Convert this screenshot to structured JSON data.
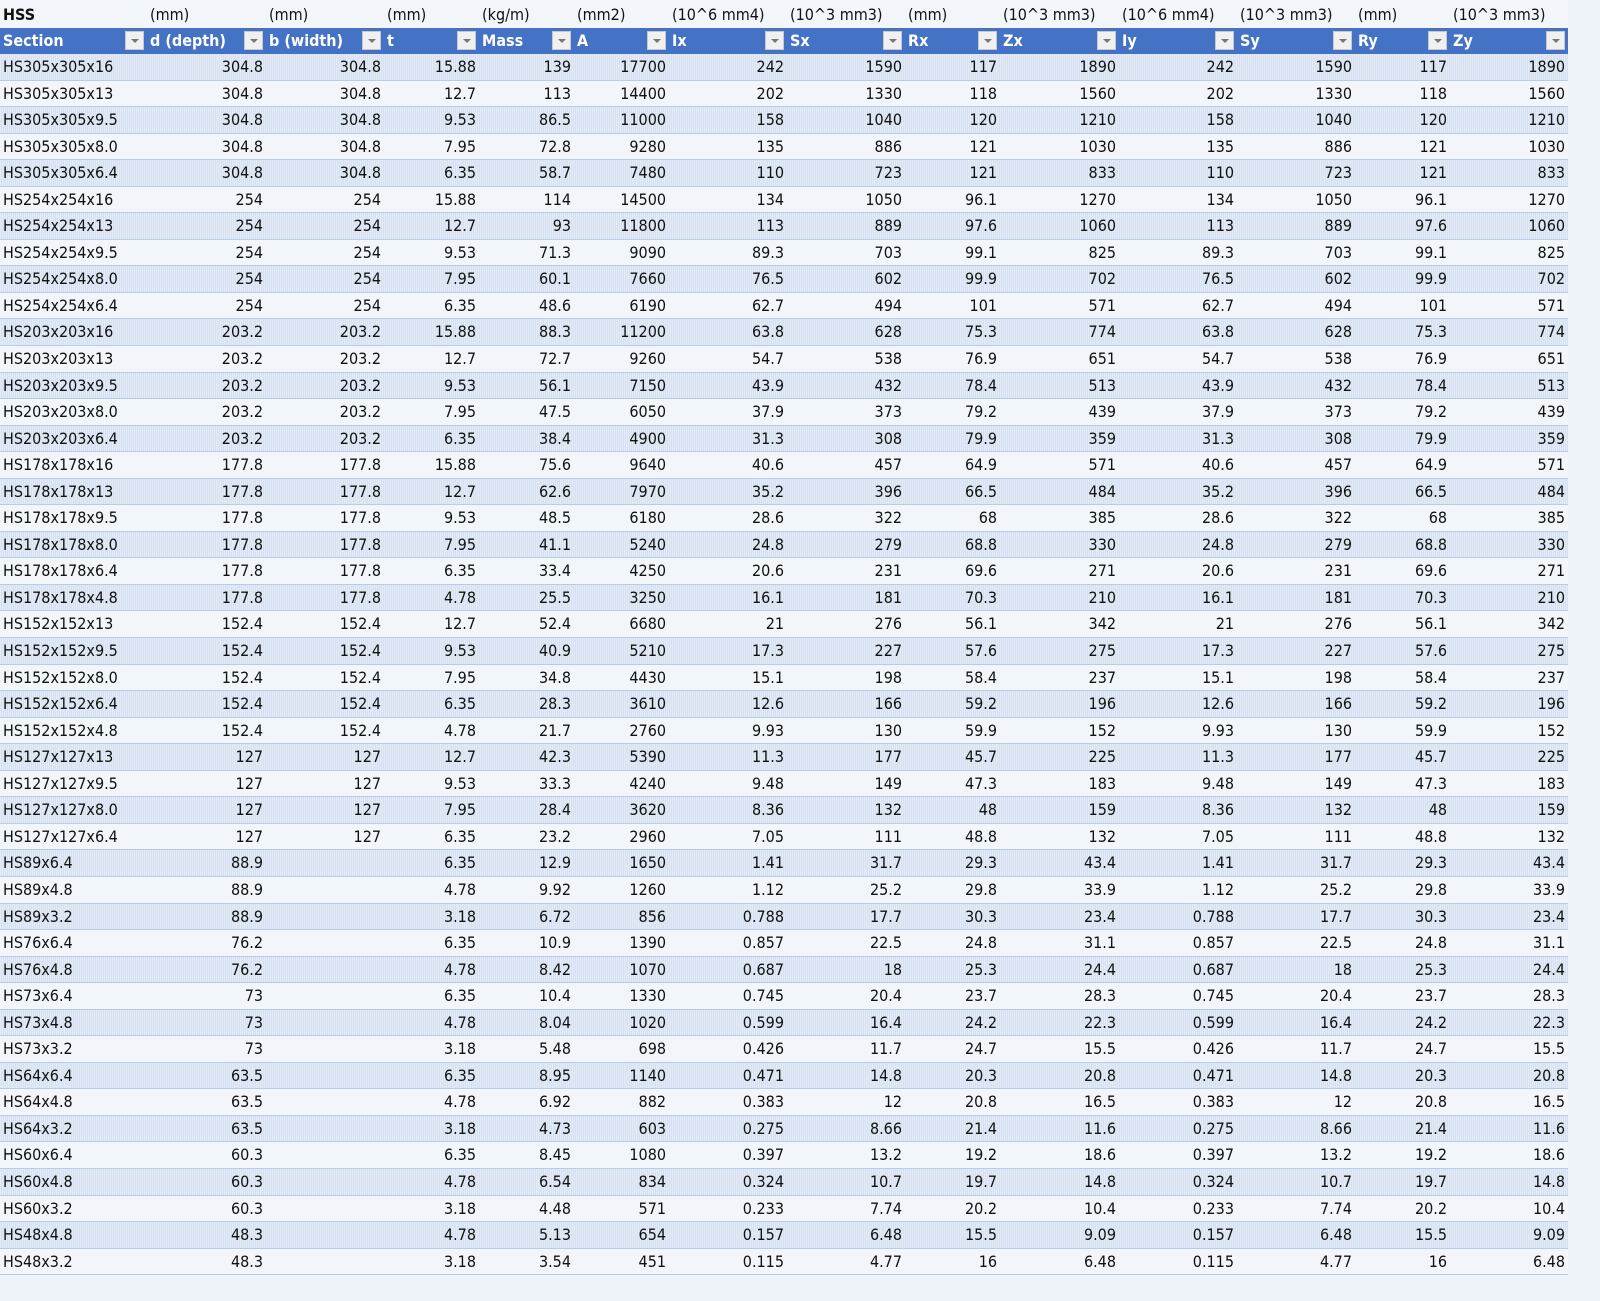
{
  "title": "HSS",
  "units": [
    "(mm)",
    "(mm)",
    "(mm)",
    "(kg/m)",
    "(mm2)",
    "(10^6 mm4)",
    "(10^3 mm3)",
    "(mm)",
    "(10^3 mm3)",
    "(10^6 mm4)",
    "(10^3 mm3)",
    "(mm)",
    "(10^3 mm3)"
  ],
  "columns": [
    "Section",
    "d (depth)",
    "b (width)",
    "t",
    "Mass",
    "A",
    "Ix",
    "Sx",
    "Rx",
    "Zx",
    "Iy",
    "Sy",
    "Ry",
    "Zy"
  ],
  "colors": {
    "header_bg": "#4472c4",
    "band": "#d5e1f1",
    "row": "#f2f5fa",
    "grid_line": "#b8cce4"
  },
  "rows": [
    [
      "HS305x305x16",
      "304.8",
      "304.8",
      "15.88",
      "139",
      "17700",
      "242",
      "1590",
      "117",
      "1890",
      "242",
      "1590",
      "117",
      "1890"
    ],
    [
      "HS305x305x13",
      "304.8",
      "304.8",
      "12.7",
      "113",
      "14400",
      "202",
      "1330",
      "118",
      "1560",
      "202",
      "1330",
      "118",
      "1560"
    ],
    [
      "HS305x305x9.5",
      "304.8",
      "304.8",
      "9.53",
      "86.5",
      "11000",
      "158",
      "1040",
      "120",
      "1210",
      "158",
      "1040",
      "120",
      "1210"
    ],
    [
      "HS305x305x8.0",
      "304.8",
      "304.8",
      "7.95",
      "72.8",
      "9280",
      "135",
      "886",
      "121",
      "1030",
      "135",
      "886",
      "121",
      "1030"
    ],
    [
      "HS305x305x6.4",
      "304.8",
      "304.8",
      "6.35",
      "58.7",
      "7480",
      "110",
      "723",
      "121",
      "833",
      "110",
      "723",
      "121",
      "833"
    ],
    [
      "HS254x254x16",
      "254",
      "254",
      "15.88",
      "114",
      "14500",
      "134",
      "1050",
      "96.1",
      "1270",
      "134",
      "1050",
      "96.1",
      "1270"
    ],
    [
      "HS254x254x13",
      "254",
      "254",
      "12.7",
      "93",
      "11800",
      "113",
      "889",
      "97.6",
      "1060",
      "113",
      "889",
      "97.6",
      "1060"
    ],
    [
      "HS254x254x9.5",
      "254",
      "254",
      "9.53",
      "71.3",
      "9090",
      "89.3",
      "703",
      "99.1",
      "825",
      "89.3",
      "703",
      "99.1",
      "825"
    ],
    [
      "HS254x254x8.0",
      "254",
      "254",
      "7.95",
      "60.1",
      "7660",
      "76.5",
      "602",
      "99.9",
      "702",
      "76.5",
      "602",
      "99.9",
      "702"
    ],
    [
      "HS254x254x6.4",
      "254",
      "254",
      "6.35",
      "48.6",
      "6190",
      "62.7",
      "494",
      "101",
      "571",
      "62.7",
      "494",
      "101",
      "571"
    ],
    [
      "HS203x203x16",
      "203.2",
      "203.2",
      "15.88",
      "88.3",
      "11200",
      "63.8",
      "628",
      "75.3",
      "774",
      "63.8",
      "628",
      "75.3",
      "774"
    ],
    [
      "HS203x203x13",
      "203.2",
      "203.2",
      "12.7",
      "72.7",
      "9260",
      "54.7",
      "538",
      "76.9",
      "651",
      "54.7",
      "538",
      "76.9",
      "651"
    ],
    [
      "HS203x203x9.5",
      "203.2",
      "203.2",
      "9.53",
      "56.1",
      "7150",
      "43.9",
      "432",
      "78.4",
      "513",
      "43.9",
      "432",
      "78.4",
      "513"
    ],
    [
      "HS203x203x8.0",
      "203.2",
      "203.2",
      "7.95",
      "47.5",
      "6050",
      "37.9",
      "373",
      "79.2",
      "439",
      "37.9",
      "373",
      "79.2",
      "439"
    ],
    [
      "HS203x203x6.4",
      "203.2",
      "203.2",
      "6.35",
      "38.4",
      "4900",
      "31.3",
      "308",
      "79.9",
      "359",
      "31.3",
      "308",
      "79.9",
      "359"
    ],
    [
      "HS178x178x16",
      "177.8",
      "177.8",
      "15.88",
      "75.6",
      "9640",
      "40.6",
      "457",
      "64.9",
      "571",
      "40.6",
      "457",
      "64.9",
      "571"
    ],
    [
      "HS178x178x13",
      "177.8",
      "177.8",
      "12.7",
      "62.6",
      "7970",
      "35.2",
      "396",
      "66.5",
      "484",
      "35.2",
      "396",
      "66.5",
      "484"
    ],
    [
      "HS178x178x9.5",
      "177.8",
      "177.8",
      "9.53",
      "48.5",
      "6180",
      "28.6",
      "322",
      "68",
      "385",
      "28.6",
      "322",
      "68",
      "385"
    ],
    [
      "HS178x178x8.0",
      "177.8",
      "177.8",
      "7.95",
      "41.1",
      "5240",
      "24.8",
      "279",
      "68.8",
      "330",
      "24.8",
      "279",
      "68.8",
      "330"
    ],
    [
      "HS178x178x6.4",
      "177.8",
      "177.8",
      "6.35",
      "33.4",
      "4250",
      "20.6",
      "231",
      "69.6",
      "271",
      "20.6",
      "231",
      "69.6",
      "271"
    ],
    [
      "HS178x178x4.8",
      "177.8",
      "177.8",
      "4.78",
      "25.5",
      "3250",
      "16.1",
      "181",
      "70.3",
      "210",
      "16.1",
      "181",
      "70.3",
      "210"
    ],
    [
      "HS152x152x13",
      "152.4",
      "152.4",
      "12.7",
      "52.4",
      "6680",
      "21",
      "276",
      "56.1",
      "342",
      "21",
      "276",
      "56.1",
      "342"
    ],
    [
      "HS152x152x9.5",
      "152.4",
      "152.4",
      "9.53",
      "40.9",
      "5210",
      "17.3",
      "227",
      "57.6",
      "275",
      "17.3",
      "227",
      "57.6",
      "275"
    ],
    [
      "HS152x152x8.0",
      "152.4",
      "152.4",
      "7.95",
      "34.8",
      "4430",
      "15.1",
      "198",
      "58.4",
      "237",
      "15.1",
      "198",
      "58.4",
      "237"
    ],
    [
      "HS152x152x6.4",
      "152.4",
      "152.4",
      "6.35",
      "28.3",
      "3610",
      "12.6",
      "166",
      "59.2",
      "196",
      "12.6",
      "166",
      "59.2",
      "196"
    ],
    [
      "HS152x152x4.8",
      "152.4",
      "152.4",
      "4.78",
      "21.7",
      "2760",
      "9.93",
      "130",
      "59.9",
      "152",
      "9.93",
      "130",
      "59.9",
      "152"
    ],
    [
      "HS127x127x13",
      "127",
      "127",
      "12.7",
      "42.3",
      "5390",
      "11.3",
      "177",
      "45.7",
      "225",
      "11.3",
      "177",
      "45.7",
      "225"
    ],
    [
      "HS127x127x9.5",
      "127",
      "127",
      "9.53",
      "33.3",
      "4240",
      "9.48",
      "149",
      "47.3",
      "183",
      "9.48",
      "149",
      "47.3",
      "183"
    ],
    [
      "HS127x127x8.0",
      "127",
      "127",
      "7.95",
      "28.4",
      "3620",
      "8.36",
      "132",
      "48",
      "159",
      "8.36",
      "132",
      "48",
      "159"
    ],
    [
      "HS127x127x6.4",
      "127",
      "127",
      "6.35",
      "23.2",
      "2960",
      "7.05",
      "111",
      "48.8",
      "132",
      "7.05",
      "111",
      "48.8",
      "132"
    ],
    [
      "HS89x6.4",
      "88.9",
      "",
      "6.35",
      "12.9",
      "1650",
      "1.41",
      "31.7",
      "29.3",
      "43.4",
      "1.41",
      "31.7",
      "29.3",
      "43.4"
    ],
    [
      "HS89x4.8",
      "88.9",
      "",
      "4.78",
      "9.92",
      "1260",
      "1.12",
      "25.2",
      "29.8",
      "33.9",
      "1.12",
      "25.2",
      "29.8",
      "33.9"
    ],
    [
      "HS89x3.2",
      "88.9",
      "",
      "3.18",
      "6.72",
      "856",
      "0.788",
      "17.7",
      "30.3",
      "23.4",
      "0.788",
      "17.7",
      "30.3",
      "23.4"
    ],
    [
      "HS76x6.4",
      "76.2",
      "",
      "6.35",
      "10.9",
      "1390",
      "0.857",
      "22.5",
      "24.8",
      "31.1",
      "0.857",
      "22.5",
      "24.8",
      "31.1"
    ],
    [
      "HS76x4.8",
      "76.2",
      "",
      "4.78",
      "8.42",
      "1070",
      "0.687",
      "18",
      "25.3",
      "24.4",
      "0.687",
      "18",
      "25.3",
      "24.4"
    ],
    [
      "HS73x6.4",
      "73",
      "",
      "6.35",
      "10.4",
      "1330",
      "0.745",
      "20.4",
      "23.7",
      "28.3",
      "0.745",
      "20.4",
      "23.7",
      "28.3"
    ],
    [
      "HS73x4.8",
      "73",
      "",
      "4.78",
      "8.04",
      "1020",
      "0.599",
      "16.4",
      "24.2",
      "22.3",
      "0.599",
      "16.4",
      "24.2",
      "22.3"
    ],
    [
      "HS73x3.2",
      "73",
      "",
      "3.18",
      "5.48",
      "698",
      "0.426",
      "11.7",
      "24.7",
      "15.5",
      "0.426",
      "11.7",
      "24.7",
      "15.5"
    ],
    [
      "HS64x6.4",
      "63.5",
      "",
      "6.35",
      "8.95",
      "1140",
      "0.471",
      "14.8",
      "20.3",
      "20.8",
      "0.471",
      "14.8",
      "20.3",
      "20.8"
    ],
    [
      "HS64x4.8",
      "63.5",
      "",
      "4.78",
      "6.92",
      "882",
      "0.383",
      "12",
      "20.8",
      "16.5",
      "0.383",
      "12",
      "20.8",
      "16.5"
    ],
    [
      "HS64x3.2",
      "63.5",
      "",
      "3.18",
      "4.73",
      "603",
      "0.275",
      "8.66",
      "21.4",
      "11.6",
      "0.275",
      "8.66",
      "21.4",
      "11.6"
    ],
    [
      "HS60x6.4",
      "60.3",
      "",
      "6.35",
      "8.45",
      "1080",
      "0.397",
      "13.2",
      "19.2",
      "18.6",
      "0.397",
      "13.2",
      "19.2",
      "18.6"
    ],
    [
      "HS60x4.8",
      "60.3",
      "",
      "4.78",
      "6.54",
      "834",
      "0.324",
      "10.7",
      "19.7",
      "14.8",
      "0.324",
      "10.7",
      "19.7",
      "14.8"
    ],
    [
      "HS60x3.2",
      "60.3",
      "",
      "3.18",
      "4.48",
      "571",
      "0.233",
      "7.74",
      "20.2",
      "10.4",
      "0.233",
      "7.74",
      "20.2",
      "10.4"
    ],
    [
      "HS48x4.8",
      "48.3",
      "",
      "4.78",
      "5.13",
      "654",
      "0.157",
      "6.48",
      "15.5",
      "9.09",
      "0.157",
      "6.48",
      "15.5",
      "9.09"
    ],
    [
      "HS48x3.2",
      "48.3",
      "",
      "3.18",
      "3.54",
      "451",
      "0.115",
      "4.77",
      "16",
      "6.48",
      "0.115",
      "4.77",
      "16",
      "6.48"
    ]
  ]
}
